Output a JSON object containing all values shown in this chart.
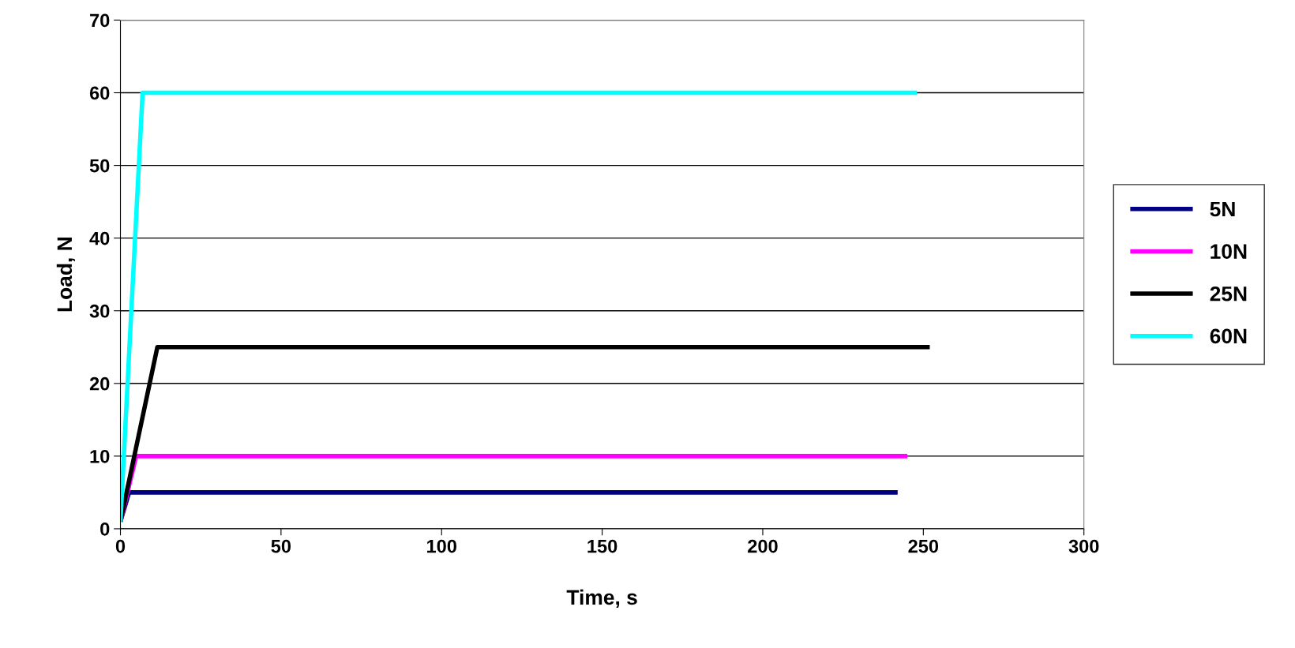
{
  "chart_data": {
    "type": "line",
    "xlabel": "Time, s",
    "ylabel": "Load, N",
    "xlim": [
      0,
      300
    ],
    "xticks": [
      0,
      50,
      100,
      150,
      200,
      250,
      300
    ],
    "ylim": [
      0,
      70
    ],
    "yticks": [
      0,
      10,
      20,
      30,
      40,
      50,
      60,
      70
    ],
    "grid": "y",
    "legend": "right",
    "line_style": "solid",
    "marker": "none",
    "series": [
      {
        "name": "5N",
        "color": "#000080",
        "x": [
          0,
          2.7,
          242
        ],
        "values": [
          1,
          5,
          5
        ]
      },
      {
        "name": "10N",
        "color": "#ff00ff",
        "x": [
          0,
          4.9,
          245
        ],
        "values": [
          1,
          10,
          10
        ]
      },
      {
        "name": "25N",
        "color": "#000000",
        "x": [
          0,
          11.5,
          252
        ],
        "values": [
          1,
          25,
          25
        ]
      },
      {
        "name": "60N",
        "color": "#00ffff",
        "x": [
          0,
          6.9,
          248
        ],
        "values": [
          1,
          60,
          60
        ]
      }
    ]
  }
}
